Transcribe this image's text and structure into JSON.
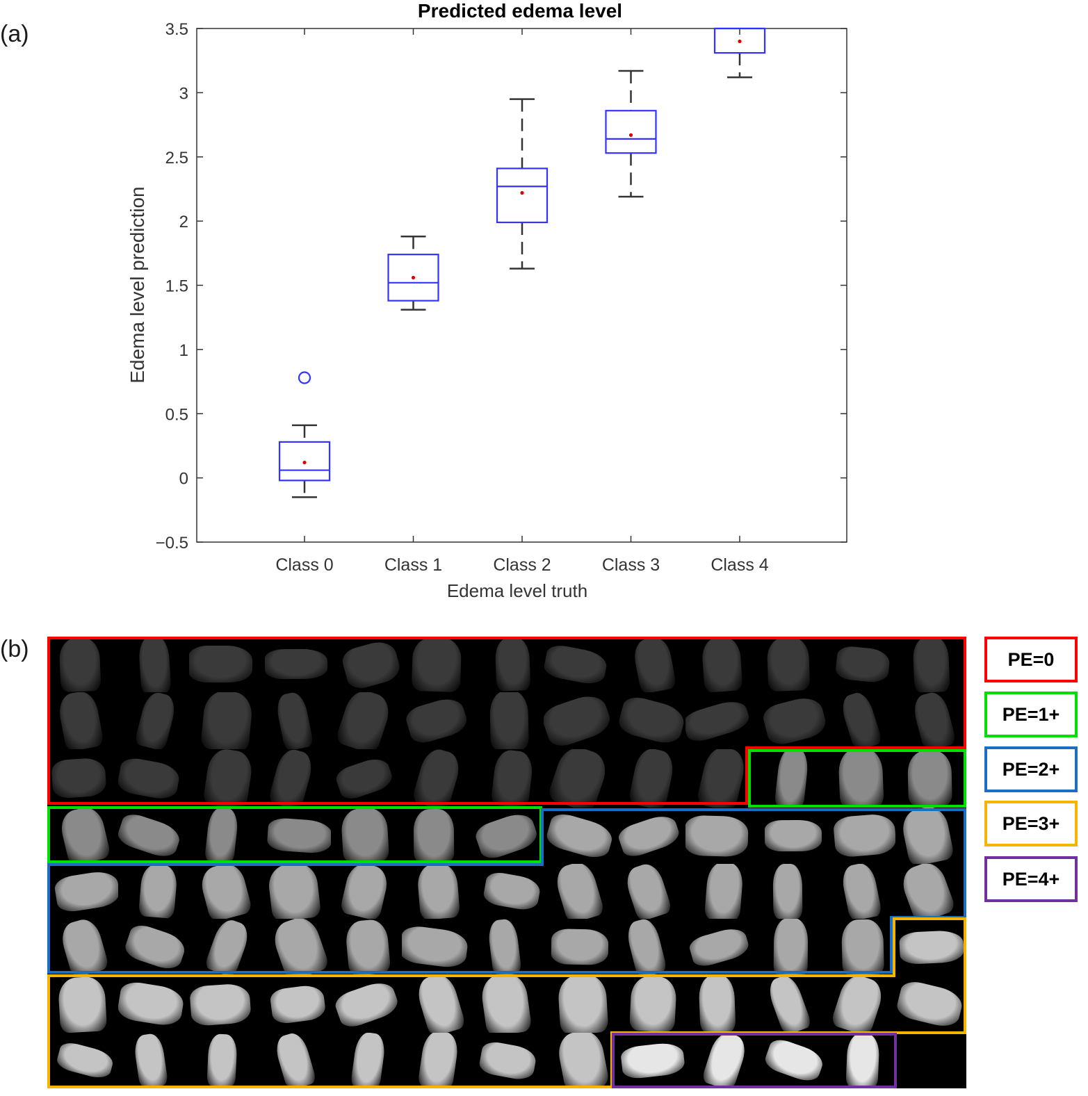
{
  "panels": {
    "a_label": "(a)",
    "b_label": "(b)"
  },
  "chart_data": {
    "type": "boxplot",
    "title": "Predicted edema level",
    "xlabel": "Edema level truth",
    "ylabel": "Edema level prediction",
    "ylim": [
      -0.5,
      3.5
    ],
    "yticks": [
      -0.5,
      0,
      0.5,
      1,
      1.5,
      2,
      2.5,
      3,
      3.5
    ],
    "ytick_labels": [
      "−0.5",
      "0",
      "0.5",
      "1",
      "1.5",
      "2",
      "2.5",
      "3",
      "3.5"
    ],
    "categories": [
      "Class 0",
      "Class 1",
      "Class 2",
      "Class 3",
      "Class 4"
    ],
    "grid": false,
    "box_color": "#3333ff",
    "whisker_color": "#333333",
    "mean_color": "#dd0000",
    "boxes": [
      {
        "category": "Class 0",
        "whisker_low": -0.15,
        "q1": -0.02,
        "median": 0.06,
        "q3": 0.28,
        "whisker_high": 0.41,
        "mean": 0.12,
        "outliers": [
          0.78
        ]
      },
      {
        "category": "Class 1",
        "whisker_low": 1.31,
        "q1": 1.38,
        "median": 1.52,
        "q3": 1.74,
        "whisker_high": 1.88,
        "mean": 1.56,
        "outliers": []
      },
      {
        "category": "Class 2",
        "whisker_low": 1.63,
        "q1": 1.99,
        "median": 2.27,
        "q3": 2.41,
        "whisker_high": 2.95,
        "mean": 2.22,
        "outliers": []
      },
      {
        "category": "Class 3",
        "whisker_low": 2.19,
        "q1": 2.53,
        "median": 2.64,
        "q3": 2.86,
        "whisker_high": 3.17,
        "mean": 2.67,
        "outliers": []
      },
      {
        "category": "Class 4",
        "whisker_low": 3.12,
        "q1": 3.31,
        "median": 3.5,
        "q3": 3.5,
        "whisker_high": 3.5,
        "mean": 3.4,
        "outliers": []
      }
    ]
  },
  "montage": {
    "columns": 13,
    "rows": 8,
    "group_colors": {
      "PE=0": "#ff0000",
      "PE=1+": "#00e000",
      "PE=2+": "#1a6fc4",
      "PE=3+": "#f5b400",
      "PE=4+": "#7030a0"
    },
    "row_groups": [
      [
        "PE=0",
        "PE=0",
        "PE=0",
        "PE=0",
        "PE=0",
        "PE=0",
        "PE=0",
        "PE=0",
        "PE=0",
        "PE=0",
        "PE=0",
        "PE=0",
        "PE=0"
      ],
      [
        "PE=0",
        "PE=0",
        "PE=0",
        "PE=0",
        "PE=0",
        "PE=0",
        "PE=0",
        "PE=0",
        "PE=0",
        "PE=0",
        "PE=0",
        "PE=0",
        "PE=0"
      ],
      [
        "PE=0",
        "PE=0",
        "PE=0",
        "PE=0",
        "PE=0",
        "PE=0",
        "PE=0",
        "PE=0",
        "PE=0",
        "PE=0",
        "PE=1+",
        "PE=1+",
        "PE=1+"
      ],
      [
        "PE=1+",
        "PE=1+",
        "PE=1+",
        "PE=1+",
        "PE=1+",
        "PE=1+",
        "PE=1+",
        "PE=2+",
        "PE=2+",
        "PE=2+",
        "PE=2+",
        "PE=2+",
        "PE=2+"
      ],
      [
        "PE=2+",
        "PE=2+",
        "PE=2+",
        "PE=2+",
        "PE=2+",
        "PE=2+",
        "PE=2+",
        "PE=2+",
        "PE=2+",
        "PE=2+",
        "PE=2+",
        "PE=2+",
        "PE=2+"
      ],
      [
        "PE=2+",
        "PE=2+",
        "PE=2+",
        "PE=2+",
        "PE=2+",
        "PE=2+",
        "PE=2+",
        "PE=2+",
        "PE=2+",
        "PE=2+",
        "PE=2+",
        "PE=2+",
        "PE=3+"
      ],
      [
        "PE=3+",
        "PE=3+",
        "PE=3+",
        "PE=3+",
        "PE=3+",
        "PE=3+",
        "PE=3+",
        "PE=3+",
        "PE=3+",
        "PE=3+",
        "PE=3+",
        "PE=3+",
        "PE=3+"
      ],
      [
        "PE=3+",
        "PE=3+",
        "PE=3+",
        "PE=3+",
        "PE=3+",
        "PE=3+",
        "PE=3+",
        "PE=3+",
        "PE=4+",
        "PE=4+",
        "PE=4+",
        "PE=4+",
        "empty"
      ]
    ],
    "tile_brightness": {
      "PE=0": "#3a3a3a",
      "PE=1+": "#8a8a8a",
      "PE=2+": "#a8a8a8",
      "PE=3+": "#c4c4c4",
      "PE=4+": "#e6e6e6"
    }
  },
  "legend": [
    {
      "label": "PE=0",
      "color": "#ff0000"
    },
    {
      "label": "PE=1+",
      "color": "#00e000"
    },
    {
      "label": "PE=2+",
      "color": "#1a6fc4"
    },
    {
      "label": "PE=3+",
      "color": "#f5b400"
    },
    {
      "label": "PE=4+",
      "color": "#7030a0"
    }
  ]
}
